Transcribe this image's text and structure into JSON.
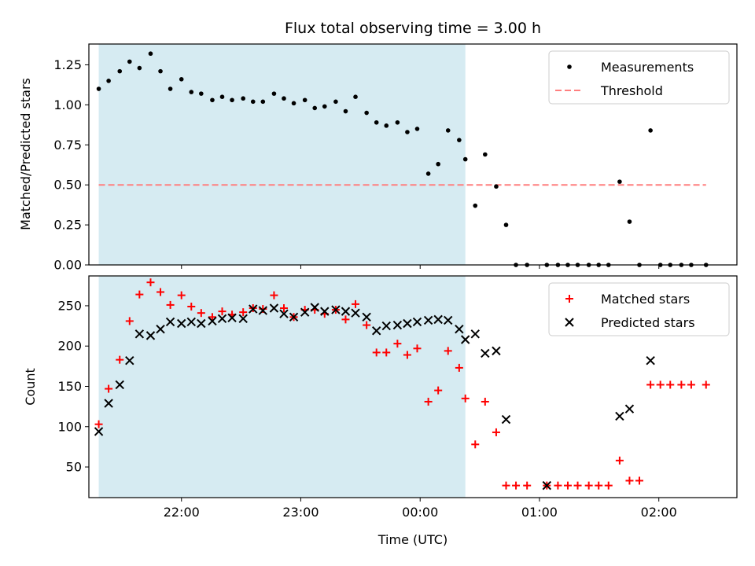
{
  "chart_data": [
    {
      "type": "scatter",
      "title": "Flux total observing time = 3.00 h",
      "xlabel": "",
      "ylabel": "Matched/Predicted stars",
      "ylim": [
        0,
        1.38
      ],
      "yticks": [
        "0.00",
        "0.25",
        "0.50",
        "0.75",
        "1.00",
        "1.25"
      ],
      "xticks": [
        "22:00",
        "23:00",
        "00:00",
        "01:00",
        "02:00"
      ],
      "xlim_hours": [
        21.27,
        26.52
      ],
      "shaded_range_hours": [
        21.35,
        24.32
      ],
      "shade_color": "#add8e6",
      "threshold": 0.5,
      "threshold_range_hours": [
        21.35,
        26.27
      ],
      "legend_position": "upper right",
      "legend": [
        "Measurements",
        "Threshold"
      ],
      "series": [
        {
          "name": "Measurements",
          "color": "#000000",
          "marker": "dot",
          "x": [
            21.35,
            21.43,
            21.52,
            21.6,
            21.68,
            21.77,
            21.85,
            21.93,
            22.02,
            22.1,
            22.18,
            22.27,
            22.35,
            22.43,
            22.52,
            22.6,
            22.68,
            22.77,
            22.85,
            22.93,
            23.02,
            23.1,
            23.18,
            23.27,
            23.35,
            23.43,
            23.52,
            23.6,
            23.68,
            23.77,
            23.85,
            23.93,
            24.02,
            24.1,
            24.18,
            24.27,
            24.32,
            24.4,
            24.48,
            24.57,
            24.65,
            24.73,
            24.82,
            24.98,
            25.07,
            25.15,
            25.23,
            25.32,
            25.4,
            25.48,
            25.57,
            25.65,
            25.73,
            25.82,
            25.9,
            25.98,
            26.07,
            26.15,
            26.27
          ],
          "y": [
            1.1,
            1.15,
            1.21,
            1.27,
            1.23,
            1.32,
            1.21,
            1.1,
            1.16,
            1.08,
            1.07,
            1.03,
            1.05,
            1.03,
            1.04,
            1.02,
            1.02,
            1.07,
            1.04,
            1.01,
            1.03,
            0.98,
            0.99,
            1.02,
            0.96,
            1.05,
            0.95,
            0.89,
            0.87,
            0.89,
            0.83,
            0.85,
            0.57,
            0.63,
            0.84,
            0.78,
            0.66,
            0.37,
            0.69,
            0.49,
            0.25,
            0,
            0,
            0,
            0,
            0,
            0,
            0,
            0,
            0,
            0.52,
            0.27,
            0,
            0.84,
            0,
            0,
            0,
            0,
            0
          ]
        },
        {
          "name": "Threshold",
          "color": "#ff7f7f",
          "style": "dashed"
        }
      ]
    },
    {
      "type": "scatter",
      "title": "",
      "xlabel": "Time (UTC)",
      "ylabel": "Count",
      "ylim": [
        12,
        287
      ],
      "yticks": [
        "50",
        "100",
        "150",
        "200",
        "250"
      ],
      "xticks": [
        "22:00",
        "23:00",
        "00:00",
        "01:00",
        "02:00"
      ],
      "xlim_hours": [
        21.27,
        26.52
      ],
      "shaded_range_hours": [
        21.35,
        24.32
      ],
      "shade_color": "#add8e6",
      "legend_position": "upper right",
      "legend": [
        "Matched stars",
        "Predicted stars"
      ],
      "series": [
        {
          "name": "Matched stars",
          "color": "#ff0000",
          "marker": "plus",
          "x": [
            21.35,
            21.43,
            21.52,
            21.6,
            21.68,
            21.77,
            21.85,
            21.93,
            22.02,
            22.1,
            22.18,
            22.27,
            22.35,
            22.43,
            22.52,
            22.6,
            22.68,
            22.77,
            22.85,
            22.93,
            23.02,
            23.1,
            23.18,
            23.27,
            23.35,
            23.43,
            23.52,
            23.6,
            23.68,
            23.77,
            23.85,
            23.93,
            24.02,
            24.1,
            24.18,
            24.27,
            24.32,
            24.4,
            24.48,
            24.57,
            24.65,
            24.73,
            24.82,
            24.98,
            25.07,
            25.15,
            25.23,
            25.32,
            25.4,
            25.48,
            25.57,
            25.65,
            25.73,
            25.82,
            25.9,
            25.98,
            26.07,
            26.15,
            26.27
          ],
          "y": [
            103,
            147,
            183,
            231,
            264,
            279,
            267,
            251,
            263,
            249,
            241,
            236,
            243,
            239,
            242,
            247,
            246,
            263,
            247,
            236,
            245,
            245,
            240,
            245,
            233,
            252,
            226,
            192,
            192,
            203,
            189,
            197,
            131,
            145,
            194,
            173,
            135,
            78,
            131,
            93,
            27,
            27,
            27,
            27,
            27,
            27,
            27,
            27,
            27,
            27,
            58,
            33,
            33,
            152,
            152,
            152,
            152,
            152,
            152
          ]
        },
        {
          "name": "Predicted stars",
          "color": "#000000",
          "marker": "x",
          "x": [
            21.35,
            21.43,
            21.52,
            21.6,
            21.68,
            21.77,
            21.85,
            21.93,
            22.02,
            22.1,
            22.18,
            22.27,
            22.35,
            22.43,
            22.52,
            22.6,
            22.68,
            22.77,
            22.85,
            22.93,
            23.02,
            23.1,
            23.18,
            23.27,
            23.35,
            23.43,
            23.52,
            23.6,
            23.68,
            23.77,
            23.85,
            23.93,
            24.02,
            24.1,
            24.18,
            24.27,
            24.32,
            24.4,
            24.48,
            24.57,
            24.65,
            24.98,
            25.57,
            25.65,
            25.82
          ],
          "y": [
            94,
            129,
            152,
            182,
            215,
            213,
            221,
            230,
            228,
            230,
            228,
            231,
            234,
            235,
            234,
            246,
            244,
            247,
            240,
            236,
            242,
            248,
            243,
            245,
            243,
            241,
            236,
            219,
            225,
            226,
            228,
            230,
            232,
            233,
            232,
            221,
            208,
            215,
            191,
            194,
            109,
            27,
            113,
            122,
            182
          ]
        }
      ]
    }
  ]
}
